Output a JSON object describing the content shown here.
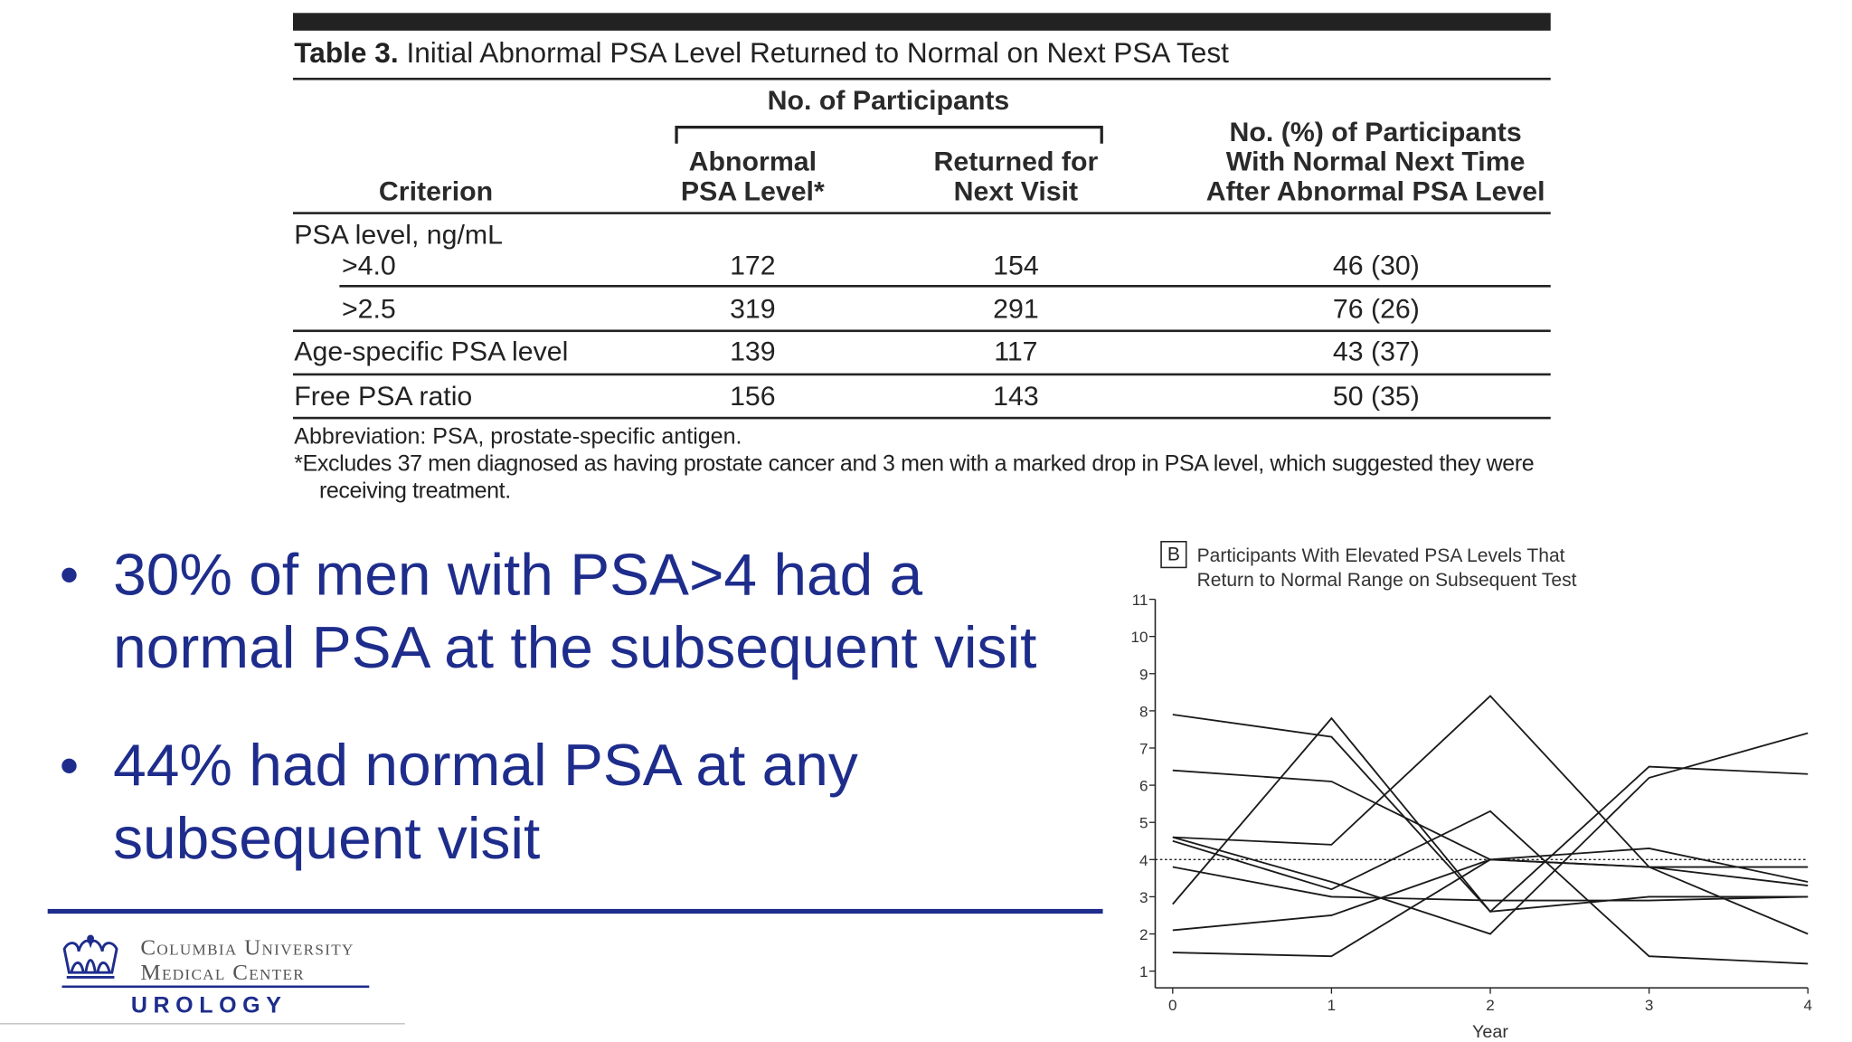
{
  "table": {
    "label": "Table 3.",
    "title": "Initial Abnormal PSA Level Returned to Normal on Next PSA Test",
    "spanner": "No. of Participants",
    "columns": [
      [
        "Criterion"
      ],
      [
        "Abnormal",
        "PSA Level*"
      ],
      [
        "Returned for",
        "Next Visit"
      ],
      [
        "No. (%) of Participants",
        "With Normal Next Time",
        "After Abnormal PSA Level"
      ]
    ],
    "rows": [
      [
        "PSA level, ng/mL"
      ],
      [
        ">4.0",
        "172",
        "154",
        "46 (30)"
      ],
      [
        ">2.5",
        "319",
        "291",
        "76 (26)"
      ],
      [
        "Age-specific PSA level",
        "139",
        "117",
        "43 (37)"
      ],
      [
        "Free PSA ratio",
        "156",
        "143",
        "50 (35)"
      ]
    ],
    "footnotes": [
      "Abbreviation: PSA, prostate-specific antigen.",
      "*Excludes 37 men diagnosed as having prostate cancer and 3 men with a marked drop in PSA level, which suggested they were receiving treatment."
    ]
  },
  "bullets": [
    "30% of men with PSA>4 had a normal PSA at the subsequent visit",
    "44% had normal PSA at any subsequent visit"
  ],
  "logo": {
    "name_lines": [
      "Columbia University",
      "Medical Center"
    ],
    "department": "UROLOGY"
  },
  "chart_data": {
    "type": "line",
    "panel": "B",
    "title": [
      "Participants With Elevated PSA Levels That",
      "Return to Normal Range on Subsequent Test"
    ],
    "x_label": "Year",
    "x": [
      0,
      1,
      2,
      3,
      4
    ],
    "xlim": [
      -0.11,
      4
    ],
    "xticks": [
      0,
      1,
      2,
      3,
      4
    ],
    "ylim": [
      0.55,
      11
    ],
    "yticks": [
      1,
      2,
      3,
      4,
      5,
      6,
      7,
      8,
      9,
      10,
      11
    ],
    "reference_line": 4,
    "color": "#1a1a1a",
    "series": [
      {
        "values": [
          7.9,
          7.3,
          2.6,
          6.5,
          6.3
        ]
      },
      {
        "values": [
          6.4,
          6.1,
          4.0,
          3.8,
          3.8
        ]
      },
      {
        "values": [
          2.8,
          7.8,
          2.6,
          3.0,
          3.0
        ]
      },
      {
        "values": [
          4.6,
          4.4,
          8.4,
          3.8,
          2.0
        ]
      },
      {
        "values": [
          4.5,
          3.2,
          5.3,
          1.4,
          1.2
        ]
      },
      {
        "values": [
          1.5,
          1.4,
          4.0,
          3.8,
          3.3
        ]
      },
      {
        "values": [
          2.1,
          2.5,
          4.0,
          4.3,
          3.4
        ]
      },
      {
        "values": [
          3.8,
          3.0,
          2.9,
          2.9,
          3.0
        ]
      },
      {
        "values": [
          4.6,
          3.4,
          2.0,
          6.2,
          7.4
        ]
      }
    ]
  }
}
